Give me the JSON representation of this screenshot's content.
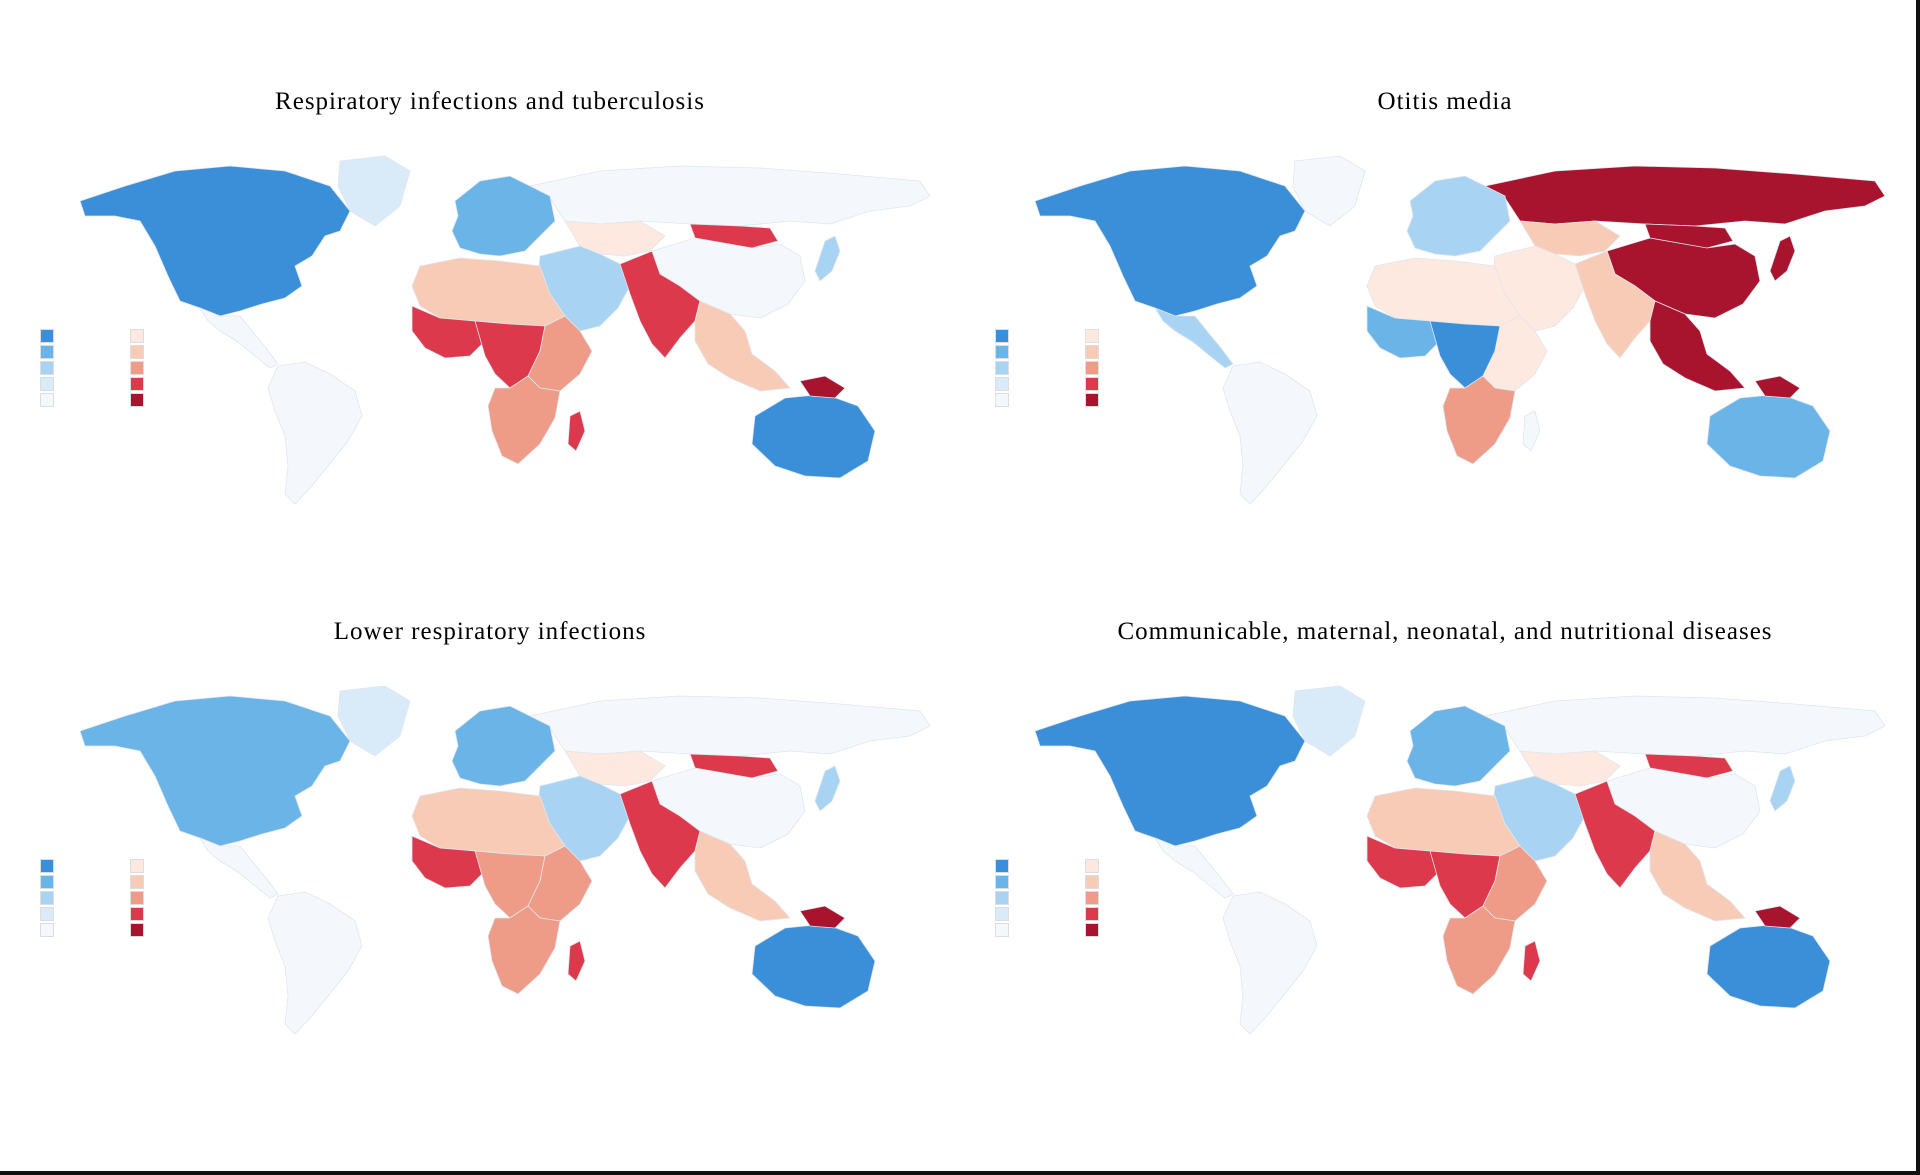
{
  "panels": [
    {
      "title": "Respiratory infections and tuberculosis",
      "legend": {
        "title": "",
        "colors": [
          "#3b8fd9",
          "#6ab4e8",
          "#a9d3f2",
          "#d9ebf9",
          "#f4f8fc",
          "#fde9df",
          "#f8cbb7",
          "#ee9b88",
          "#dc3a4c",
          "#a8142e"
        ]
      },
      "regions": {
        "north-america": "#3b8fd9",
        "greenland": "#d9ebf9",
        "central-america": "#f4f8fc",
        "south-america": "#f4f8fc",
        "europe": "#6ab4e8",
        "russia": "#f4f8fc",
        "central-asia": "#fde9df",
        "mongolia": "#dc3a4c",
        "china": "#f4f8fc",
        "middle-east": "#a9d3f2",
        "south-asia": "#dc3a4c",
        "southeast-asia": "#f8cbb7",
        "north-africa": "#f8cbb7",
        "west-africa": "#dc3a4c",
        "central-africa": "#dc3a4c",
        "east-africa": "#ee9b88",
        "southern-africa": "#ee9b88",
        "madagascar": "#dc3a4c",
        "australia": "#3b8fd9",
        "new-guinea": "#a8142e",
        "japan": "#a9d3f2"
      }
    },
    {
      "title": "Otitis media",
      "legend": {
        "title": "",
        "colors": [
          "#3b8fd9",
          "#6ab4e8",
          "#a9d3f2",
          "#d9ebf9",
          "#f4f8fc",
          "#fde9df",
          "#f8cbb7",
          "#ee9b88",
          "#dc3a4c",
          "#a8142e"
        ]
      },
      "regions": {
        "north-america": "#3b8fd9",
        "greenland": "#f4f8fc",
        "central-america": "#a9d3f2",
        "south-america": "#f4f8fc",
        "europe": "#a9d3f2",
        "russia": "#a8142e",
        "central-asia": "#f8cbb7",
        "mongolia": "#a8142e",
        "china": "#a8142e",
        "middle-east": "#fde9df",
        "south-asia": "#f8cbb7",
        "southeast-asia": "#a8142e",
        "north-africa": "#fde9df",
        "west-africa": "#6ab4e8",
        "central-africa": "#3b8fd9",
        "east-africa": "#fde9df",
        "southern-africa": "#ee9b88",
        "madagascar": "#f4f8fc",
        "australia": "#6ab4e8",
        "new-guinea": "#a8142e",
        "japan": "#a8142e"
      }
    },
    {
      "title": "Lower respiratory infections",
      "legend": {
        "title": "",
        "colors": [
          "#3b8fd9",
          "#6ab4e8",
          "#a9d3f2",
          "#d9ebf9",
          "#f4f8fc",
          "#fde9df",
          "#f8cbb7",
          "#ee9b88",
          "#dc3a4c",
          "#a8142e"
        ]
      },
      "regions": {
        "north-america": "#6ab4e8",
        "greenland": "#d9ebf9",
        "central-america": "#f4f8fc",
        "south-america": "#f4f8fc",
        "europe": "#6ab4e8",
        "russia": "#f4f8fc",
        "central-asia": "#fde9df",
        "mongolia": "#dc3a4c",
        "china": "#f4f8fc",
        "middle-east": "#a9d3f2",
        "south-asia": "#dc3a4c",
        "southeast-asia": "#f8cbb7",
        "north-africa": "#f8cbb7",
        "west-africa": "#dc3a4c",
        "central-africa": "#ee9b88",
        "east-africa": "#ee9b88",
        "southern-africa": "#ee9b88",
        "madagascar": "#dc3a4c",
        "australia": "#3b8fd9",
        "new-guinea": "#a8142e",
        "japan": "#a9d3f2"
      }
    },
    {
      "title": "Communicable, maternal, neonatal, and nutritional diseases",
      "legend": {
        "title": "",
        "colors": [
          "#3b8fd9",
          "#6ab4e8",
          "#a9d3f2",
          "#d9ebf9",
          "#f4f8fc",
          "#fde9df",
          "#f8cbb7",
          "#ee9b88",
          "#dc3a4c",
          "#a8142e"
        ]
      },
      "regions": {
        "north-america": "#3b8fd9",
        "greenland": "#d9ebf9",
        "central-america": "#f4f8fc",
        "south-america": "#f4f8fc",
        "europe": "#6ab4e8",
        "russia": "#f4f8fc",
        "central-asia": "#fde9df",
        "mongolia": "#dc3a4c",
        "china": "#f4f8fc",
        "middle-east": "#a9d3f2",
        "south-asia": "#dc3a4c",
        "southeast-asia": "#f8cbb7",
        "north-africa": "#f8cbb7",
        "west-africa": "#dc3a4c",
        "central-africa": "#dc3a4c",
        "east-africa": "#ee9b88",
        "southern-africa": "#ee9b88",
        "madagascar": "#dc3a4c",
        "australia": "#3b8fd9",
        "new-guinea": "#a8142e",
        "japan": "#a9d3f2"
      }
    }
  ]
}
